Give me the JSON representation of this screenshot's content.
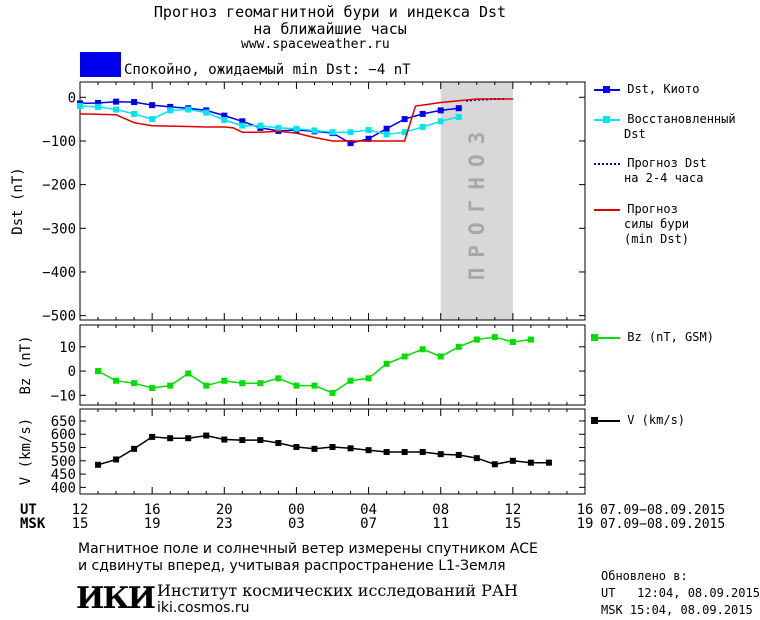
{
  "header": {
    "title_line1": "Прогноз геомагнитной бури и индекса Dst",
    "title_line2": "на ближайшие часы",
    "site": "www.spaceweather.ru",
    "status_color": "#0000ee",
    "status_text": "Спокойно, ожидаемый min Dst: −4 nT"
  },
  "colors": {
    "dst_kyoto": "#0000ee",
    "dst_restored": "#00e5ee",
    "dst_forecast_dotted": "#0000cc",
    "storm_forecast": "#dd0000",
    "bz": "#00dd00",
    "v": "#000000",
    "forecast_band": "#d8d8d8"
  },
  "chart_data": [
    {
      "type": "line",
      "ylabel": "Dst (nT)",
      "ylim": [
        -510,
        35
      ],
      "yticks": [
        0,
        -100,
        -200,
        -300,
        -400,
        -500
      ],
      "xlim": [
        12,
        40
      ],
      "forecast_band": {
        "x": [
          32,
          36
        ],
        "label": "ПРОГНОЗ"
      },
      "series": [
        {
          "name": "Dst, Киото",
          "color_key": "dst_kyoto",
          "marker": "square",
          "x": [
            12,
            13,
            14,
            15,
            16,
            17,
            18,
            19,
            20,
            21,
            22,
            23,
            24,
            25,
            26,
            27,
            28,
            29,
            30,
            31,
            32,
            33
          ],
          "y": [
            -14,
            -13,
            -10,
            -11,
            -18,
            -22,
            -25,
            -30,
            -42,
            -55,
            -70,
            -77,
            -75,
            -78,
            -82,
            -105,
            -95,
            -72,
            -50,
            -38,
            -30,
            -25
          ]
        },
        {
          "name": "Восстановленный Dst",
          "color_key": "dst_restored",
          "marker": "square",
          "x": [
            12,
            13,
            14,
            15,
            16,
            17,
            18,
            19,
            20,
            21,
            22,
            23,
            24,
            25,
            26,
            27,
            28,
            29,
            30,
            31,
            32,
            33
          ],
          "y": [
            -20,
            -22,
            -28,
            -38,
            -50,
            -30,
            -28,
            -35,
            -52,
            -65,
            -65,
            -70,
            -72,
            -76,
            -80,
            -80,
            -75,
            -85,
            -80,
            -68,
            -55,
            -45
          ]
        },
        {
          "name": "Прогноз Dst на 2-4 часа",
          "color_key": "dst_forecast_dotted",
          "marker": "none",
          "dotted": true,
          "x": [
            33.4,
            33.9,
            34.4,
            35,
            35.6
          ],
          "y": [
            -8,
            -6,
            -5,
            -4,
            -4
          ]
        },
        {
          "name": "Прогноз силы бури (min Dst)",
          "color_key": "storm_forecast",
          "marker": "none",
          "x": [
            12,
            14,
            15,
            16,
            17,
            18,
            19,
            20,
            20.5,
            21,
            22,
            23,
            24,
            25,
            26,
            27,
            28,
            29,
            30,
            30.6,
            31,
            32,
            33,
            34,
            35,
            36
          ],
          "y": [
            -38,
            -40,
            -58,
            -65,
            -66,
            -67,
            -68,
            -68,
            -70,
            -80,
            -80,
            -78,
            -82,
            -92,
            -100,
            -100,
            -100,
            -100,
            -100,
            -20,
            -18,
            -12,
            -8,
            -4,
            -4,
            -4
          ]
        }
      ]
    },
    {
      "type": "line",
      "ylabel": "Bz (nT)",
      "ylim": [
        -14,
        19
      ],
      "yticks": [
        10,
        0,
        -10
      ],
      "xlim": [
        12,
        40
      ],
      "series": [
        {
          "name": "Bz (nT, GSM)",
          "color_key": "bz",
          "marker": "square",
          "x": [
            13,
            14,
            15,
            16,
            17,
            18,
            19,
            20,
            21,
            22,
            23,
            24,
            25,
            26,
            27,
            28,
            29,
            30,
            31,
            32,
            33,
            34,
            35,
            36,
            37
          ],
          "y": [
            0,
            -4,
            -5,
            -7,
            -6,
            -1,
            -6,
            -4,
            -5,
            -5,
            -3,
            -6,
            -6,
            -9,
            -4,
            -3,
            3,
            6,
            9,
            6,
            10,
            13,
            14,
            12,
            13
          ]
        }
      ]
    },
    {
      "type": "line",
      "ylabel": "V (km/s)",
      "ylim": [
        375,
        695
      ],
      "yticks": [
        650,
        600,
        550,
        500,
        450,
        400
      ],
      "xlim": [
        12,
        40
      ],
      "series": [
        {
          "name": "V (km/s)",
          "color_key": "v",
          "marker": "square",
          "x": [
            13,
            14,
            15,
            16,
            17,
            18,
            19,
            20,
            21,
            22,
            23,
            24,
            25,
            26,
            27,
            28,
            29,
            30,
            31,
            32,
            33,
            34,
            35,
            36,
            37,
            38
          ],
          "y": [
            485,
            505,
            545,
            590,
            585,
            585,
            595,
            580,
            578,
            578,
            567,
            552,
            545,
            552,
            547,
            540,
            533,
            533,
            533,
            525,
            522,
            510,
            487,
            500,
            493,
            493
          ]
        }
      ]
    }
  ],
  "time_axis": {
    "ut_label": "UT",
    "msk_label": "MSK",
    "ut_ticks": [
      "12",
      "16",
      "20",
      "00",
      "04",
      "08",
      "12",
      "16"
    ],
    "msk_ticks": [
      "15",
      "19",
      "23",
      "03",
      "07",
      "11",
      "15",
      "19"
    ],
    "ut_range": "07.09−08.09.2015",
    "msk_range": "07.09−08.09.2015"
  },
  "legend": {
    "dst_kyoto": "Dst, Киото",
    "restored_1": "Восстановленный",
    "restored_2": "Dst",
    "forecast_1": "Прогноз Dst",
    "forecast_2": "на 2-4 часа",
    "storm_1": "Прогноз",
    "storm_2": "силы бури",
    "storm_3": "(min Dst)",
    "bz": "Bz (nT, GSM)",
    "v": "V (km/s)"
  },
  "footer": {
    "note_line1": "Магнитное поле и солнечный ветер измерены спутником ACE",
    "note_line2": "и сдвинуты вперед, учитывая распространение L1-Земля",
    "logo_text": "ИКИ",
    "institute": "Институт космических исследований РАН",
    "institute_site": "iki.cosmos.ru",
    "updated_label": "Обновлено в:",
    "updated_ut": "UT   12:04, 08.09.2015",
    "updated_msk": "MSK 15:04, 08.09.2015"
  }
}
